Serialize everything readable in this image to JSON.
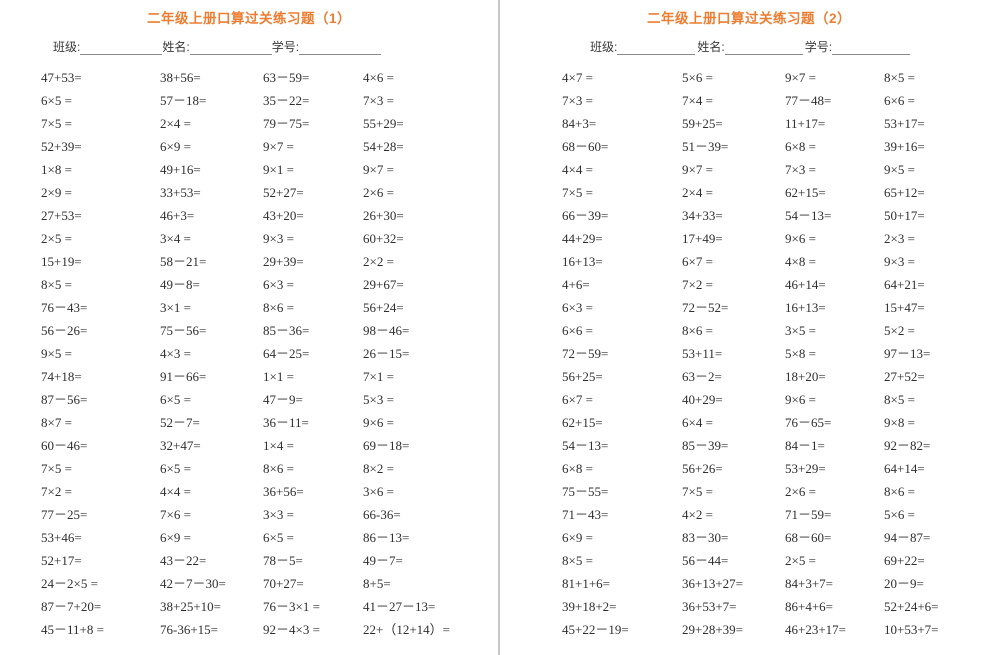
{
  "colors": {
    "title": "#ED7D31",
    "text": "#2f2f2f",
    "divider": "#c9c9c9",
    "blank_line": "#8a8a8a"
  },
  "pages": [
    {
      "title": "二年级上册口算过关练习题（1）",
      "header": {
        "class_label": "班级:",
        "name_label": "姓名:",
        "id_label": "学号:"
      },
      "rows": [
        [
          "47+53=",
          "38+56=",
          "63－59=",
          "4×6 ="
        ],
        [
          "6×5 =",
          "57－18=",
          "35－22=",
          "7×3 ="
        ],
        [
          "7×5 =",
          "2×4 =",
          "79－75=",
          "55+29="
        ],
        [
          "52+39=",
          "6×9 =",
          "9×7 =",
          "54+28="
        ],
        [
          "1×8 =",
          "49+16=",
          "9×1 =",
          "9×7 ="
        ],
        [
          "2×9 =",
          "33+53=",
          "52+27=",
          "2×6 ="
        ],
        [
          "27+53=",
          "46+3=",
          "43+20=",
          "26+30="
        ],
        [
          "2×5 =",
          "3×4 =",
          "9×3 =",
          "60+32="
        ],
        [
          "15+19=",
          "58－21=",
          "29+39=",
          "2×2 ="
        ],
        [
          "8×5 =",
          "49－8=",
          "6×3 =",
          "29+67="
        ],
        [
          "76－43=",
          "3×1 =",
          "8×6 =",
          "56+24="
        ],
        [
          "56－26=",
          "75－56=",
          "85－36=",
          "98－46="
        ],
        [
          "9×5 =",
          "4×3 =",
          "64－25=",
          "26－15="
        ],
        [
          "74+18=",
          "91－66=",
          "1×1 =",
          "7×1 ="
        ],
        [
          "87－56=",
          "6×5 =",
          "47－9=",
          "5×3 ="
        ],
        [
          "8×7 =",
          "52－7=",
          "36－11=",
          "9×6 ="
        ],
        [
          "60－46=",
          "32+47=",
          "1×4 =",
          "69－18="
        ],
        [
          "7×5 =",
          "6×5 =",
          "8×6 =",
          "8×2 ="
        ],
        [
          "7×2 =",
          "4×4 =",
          "36+56=",
          "3×6 ="
        ],
        [
          "77－25=",
          "7×6 =",
          "3×3 =",
          "66-36="
        ],
        [
          "53+46=",
          "6×9 =",
          "6×5 =",
          "86－13="
        ],
        [
          "52+17=",
          "43－22=",
          "78－5=",
          "49－7="
        ],
        [
          "24－2×5 =",
          "42－7－30=",
          "70+27=",
          "8+5="
        ],
        [
          "87－7+20=",
          "38+25+10=",
          "76－3×1 =",
          "41－27－13="
        ],
        [
          "45－11+8 =",
          "76-36+15=",
          "92－4×3 =",
          "22+（12+14）="
        ]
      ]
    },
    {
      "title": "二年级上册口算过关练习题（2）",
      "header": {
        "class_label": "班级:",
        "name_label": "姓名:",
        "id_label": "学号:"
      },
      "rows": [
        [
          "4×7 =",
          "5×6 =",
          "9×7 =",
          "8×5 ="
        ],
        [
          "7×3 =",
          "7×4 =",
          "77－48=",
          "6×6 ="
        ],
        [
          "84+3=",
          "59+25=",
          "11+17=",
          "53+17="
        ],
        [
          "68－60=",
          "51－39=",
          "6×8 =",
          "39+16="
        ],
        [
          "4×4 =",
          "9×7 =",
          "7×3 =",
          "9×5 ="
        ],
        [
          "7×5 =",
          "2×4 =",
          "62+15=",
          "65+12="
        ],
        [
          "66－39=",
          "34+33=",
          "54－13=",
          "50+17="
        ],
        [
          "44+29=",
          "17+49=",
          "9×6 =",
          "2×3 ="
        ],
        [
          "16+13=",
          "6×7 =",
          "4×8 =",
          "9×3 ="
        ],
        [
          "4+6=",
          "7×2 =",
          "46+14=",
          "64+21="
        ],
        [
          "6×3 =",
          "72－52=",
          "16+13=",
          "15+47="
        ],
        [
          "6×6 =",
          "8×6 =",
          "3×5 =",
          "5×2 ="
        ],
        [
          "72－59=",
          "53+11=",
          "5×8 =",
          "97－13="
        ],
        [
          "56+25=",
          "63－2=",
          "18+20=",
          "27+52="
        ],
        [
          "6×7 =",
          "40+29=",
          "9×6 =",
          "8×5 ="
        ],
        [
          "62+15=",
          "6×4 =",
          "76－65=",
          "9×8 ="
        ],
        [
          "54－13=",
          "85－39=",
          "84－1=",
          "92－82="
        ],
        [
          "6×8 =",
          "56+26=",
          "53+29=",
          "64+14="
        ],
        [
          "75－55=",
          "7×5 =",
          "2×6 =",
          "8×6 ="
        ],
        [
          "71－43=",
          "4×2 =",
          "71－59=",
          "5×6 ="
        ],
        [
          "6×9 =",
          "83－30=",
          "68－60=",
          "94－87="
        ],
        [
          "8×5 =",
          "56－44=",
          "2×5 =",
          "69+22="
        ],
        [
          "81+1+6=",
          "36+13+27=",
          "84+3+7=",
          "20－9="
        ],
        [
          "39+18+2=",
          "36+53+7=",
          "86+4+6=",
          "52+24+6="
        ],
        [
          "45+22－19=",
          "29+28+39=",
          "46+23+17=",
          "10+53+7="
        ]
      ]
    }
  ]
}
